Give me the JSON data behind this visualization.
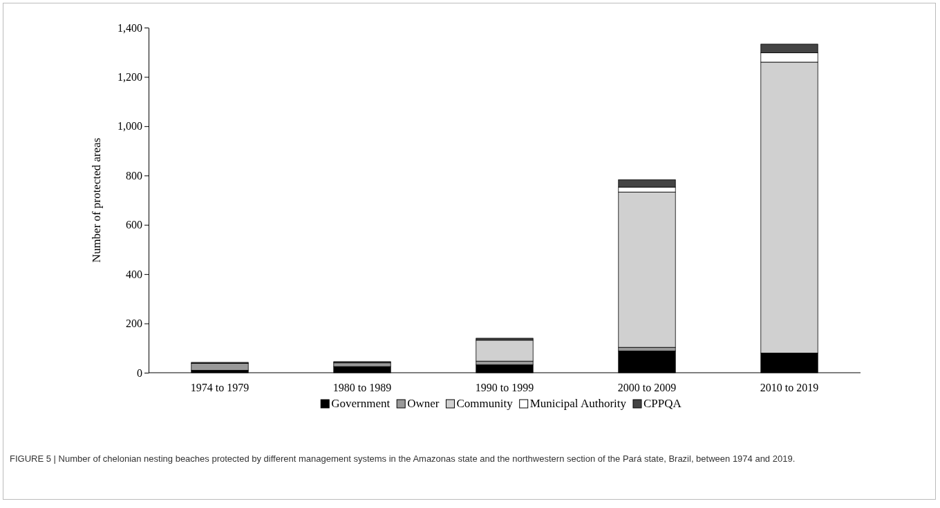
{
  "chart_data": {
    "type": "bar",
    "stacked": true,
    "ylabel": "Number of protected areas",
    "categories": [
      "1974 to 1979",
      "1980 to 1989",
      "1990 to 1999",
      "2000 to 2009",
      "2010 to 2019"
    ],
    "series": [
      {
        "name": "Government",
        "color": "#000000",
        "values": [
          10,
          25,
          32,
          88,
          80
        ]
      },
      {
        "name": "Owner",
        "color": "#999999",
        "values": [
          28,
          15,
          15,
          15,
          null
        ]
      },
      {
        "name": "Community",
        "color": "#d0d0d0",
        "values": [
          null,
          null,
          85,
          630,
          1180
        ]
      },
      {
        "name": "Municipal Authority",
        "color": "#ffffff",
        "values": [
          null,
          null,
          null,
          20,
          38
        ]
      },
      {
        "name": "CPPQA",
        "color": "#444444",
        "values": [
          4,
          5,
          8,
          30,
          35
        ]
      }
    ],
    "ylim": [
      0,
      1400
    ],
    "yticks": [
      0,
      {
        "value": 200,
        "label": "200"
      },
      {
        "value": 400,
        "label": "400"
      },
      {
        "value": 600,
        "label": "600"
      },
      {
        "value": 800,
        "label": "800"
      },
      {
        "value": 1000,
        "label": "1,000"
      },
      {
        "value": 1200,
        "label": "1,200"
      },
      {
        "value": 1400,
        "label": "1,400"
      }
    ],
    "legend": "bottom",
    "annotations": [
      "FIGURE 5 | Number of chelonian nesting beaches protected by different management systems in the Amazonas state and the northwestern section of the Pará state, Brazil, between 1974 and 2019."
    ]
  }
}
